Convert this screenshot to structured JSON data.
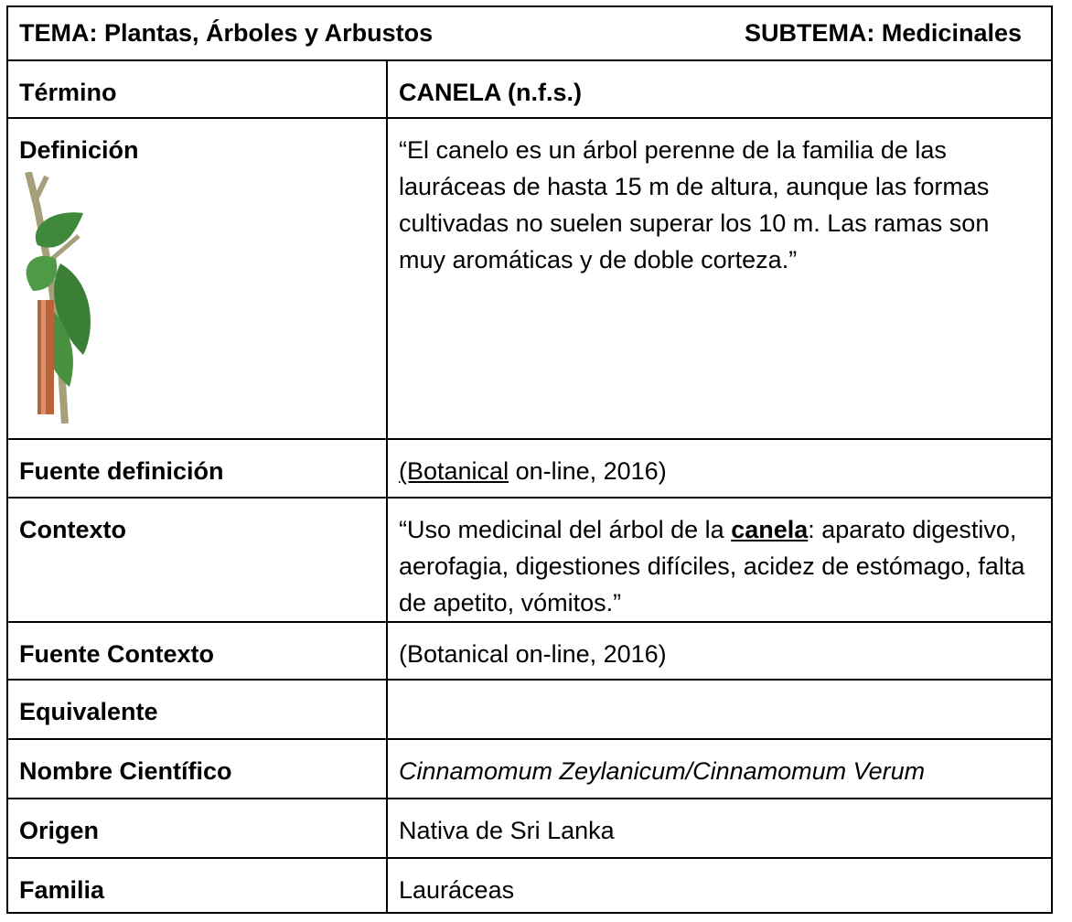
{
  "header": {
    "tema": "TEMA: Plantas, Árboles y Arbustos",
    "subtema": "SUBTEMA: Medicinales"
  },
  "table": {
    "rows": [
      [
        "Término",
        "CANELA (n.f.s.)"
      ],
      [
        "Definición",
        "“El canelo es un árbol perenne de la familia de las lauráceas de hasta 15 m de altura, aunque las formas cultivadas no suelen superar los 10 m. Las ramas son muy aromáticas y de doble corteza.”"
      ],
      [
        "Fuente definición",
        [
          "(Botanical",
          " on-line, 2016)"
        ]
      ],
      [
        "Contexto",
        [
          "“Uso medicinal del árbol de la ",
          "canela",
          ": aparato digestivo, aerofagia, digestiones difíciles, acidez de estómago, falta de apetito, vómitos.”"
        ]
      ],
      [
        "Fuente Contexto",
        "(Botanical on-line, 2016)"
      ],
      [
        "Equivalente"
      ],
      [
        "Nombre Científico",
        "Cinnamomum Zeylanicum/Cinnamomum Verum"
      ],
      [
        "Origen",
        "Nativa de Sri Lanka"
      ],
      [
        "Familia",
        "Lauráceas"
      ]
    ]
  }
}
